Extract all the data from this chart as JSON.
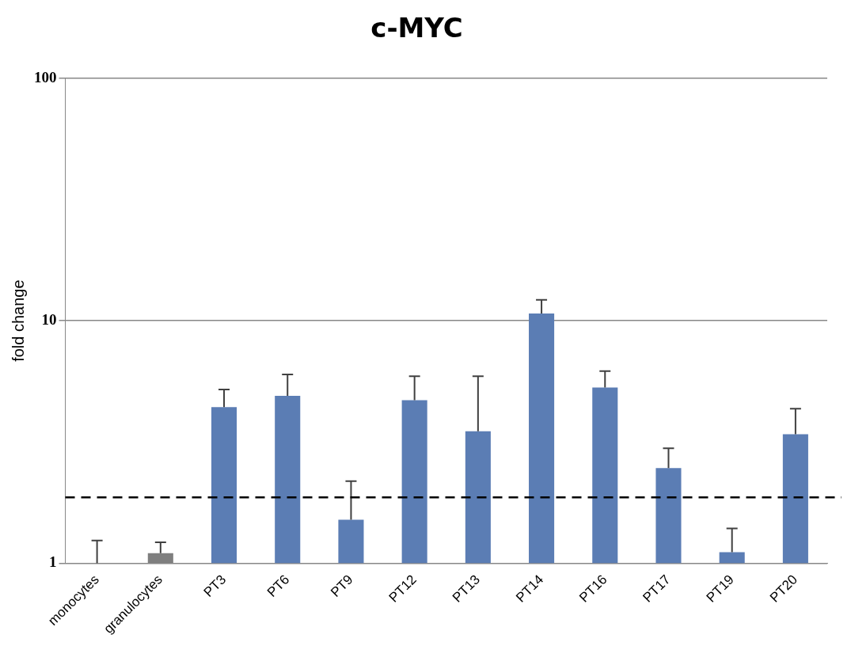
{
  "chart_data": {
    "type": "bar",
    "title": "c-MYC",
    "ylabel": "fold change",
    "categories": [
      "monocytes",
      "granulocytes",
      "PT3",
      "PT6",
      "PT9",
      "PT12",
      "PT13",
      "PT14",
      "PT16",
      "PT17",
      "PT19",
      "PT20"
    ],
    "values": [
      1,
      1.1,
      4.4,
      4.9,
      1.51,
      4.7,
      3.5,
      10.7,
      5.3,
      2.47,
      1.11,
      3.4
    ],
    "colors": [
      "#5b7db4",
      "#7f7f7f",
      "#5b7db4",
      "#5b7db4",
      "#5b7db4",
      "#5b7db4",
      "#5b7db4",
      "#5b7db4",
      "#5b7db4",
      "#5b7db4",
      "#5b7db4",
      "#5b7db4"
    ],
    "errors": [
      [
        1,
        1.24
      ],
      [
        1.1,
        1.22
      ],
      [
        4.4,
        5.2
      ],
      [
        4.9,
        6.0
      ],
      [
        1.51,
        2.18
      ],
      [
        4.7,
        5.9
      ],
      [
        3.5,
        5.9
      ],
      [
        10.7,
        12.2
      ],
      [
        5.3,
        6.2
      ],
      [
        2.47,
        2.98
      ],
      [
        1.11,
        1.39
      ],
      [
        3.4,
        4.34
      ]
    ],
    "log": true,
    "ylim": [
      1,
      100
    ],
    "yticks": [
      1,
      10,
      100
    ],
    "grid": "y",
    "ref_lines": [
      {
        "axis": "y",
        "value": 1.87,
        "color": "#000000",
        "line_style": "dashed"
      }
    ]
  }
}
